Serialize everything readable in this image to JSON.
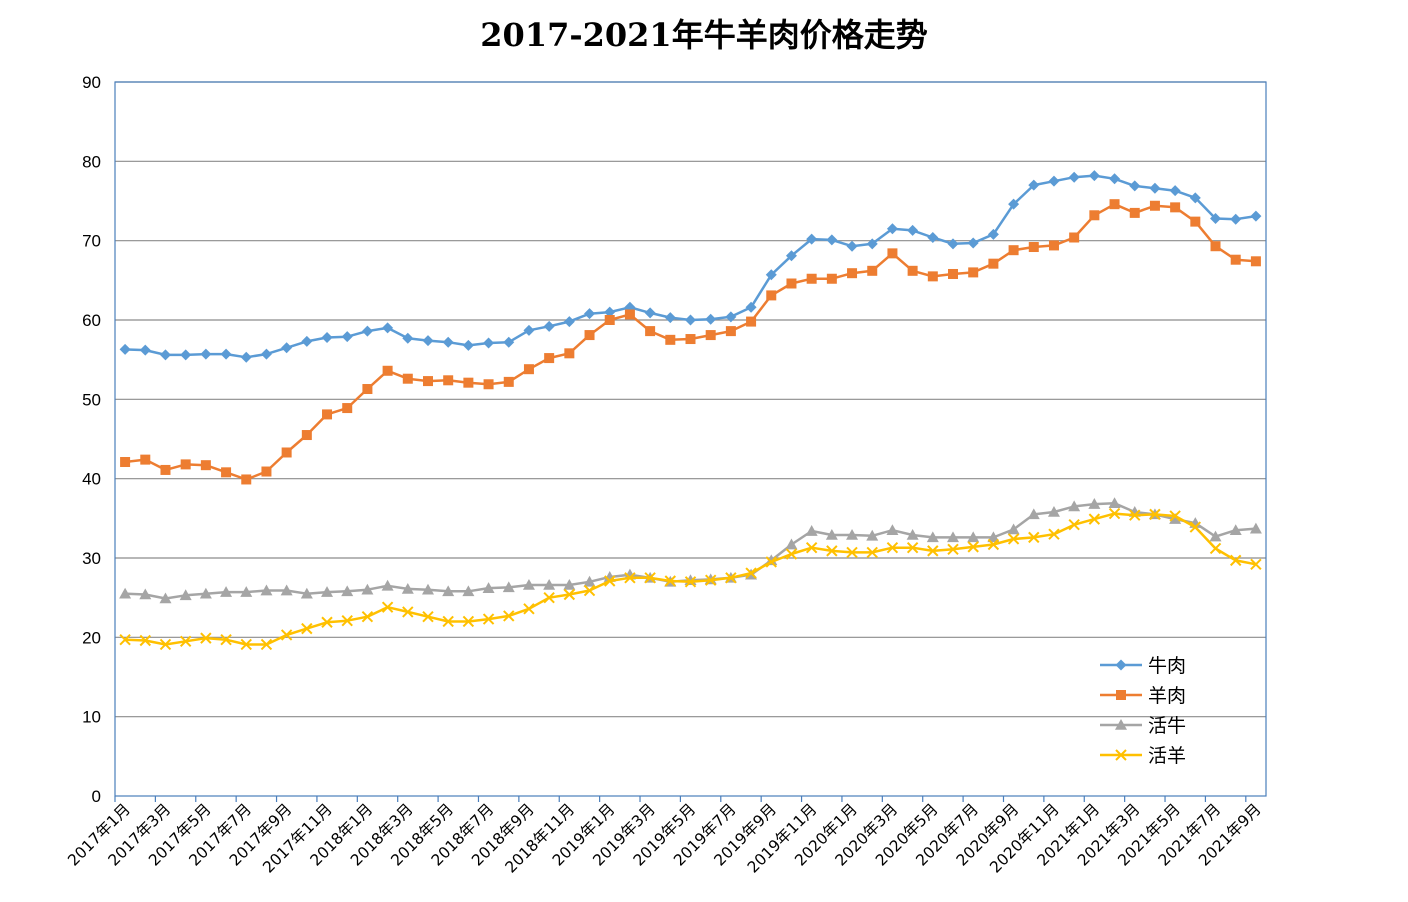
{
  "chart_data": {
    "type": "line",
    "title": "2017-2021年牛羊肉价格走势",
    "xlabel": "",
    "ylabel": "",
    "ylim": [
      0,
      90
    ],
    "yticks": [
      0,
      10,
      20,
      30,
      40,
      50,
      60,
      70,
      80,
      90
    ],
    "grid": "horizontal",
    "legend_position": "bottom-right",
    "categories": [
      "2017年1月",
      "2017年2月",
      "2017年3月",
      "2017年4月",
      "2017年5月",
      "2017年6月",
      "2017年7月",
      "2017年8月",
      "2017年9月",
      "2017年10月",
      "2017年11月",
      "2017年12月",
      "2018年1月",
      "2018年2月",
      "2018年3月",
      "2018年4月",
      "2018年5月",
      "2018年6月",
      "2018年7月",
      "2018年8月",
      "2018年9月",
      "2018年10月",
      "2018年11月",
      "2018年12月",
      "2019年1月",
      "2019年2月",
      "2019年3月",
      "2019年4月",
      "2019年5月",
      "2019年6月",
      "2019年7月",
      "2019年8月",
      "2019年9月",
      "2019年10月",
      "2019年11月",
      "2019年12月",
      "2020年1月",
      "2020年2月",
      "2020年3月",
      "2020年4月",
      "2020年5月",
      "2020年6月",
      "2020年7月",
      "2020年8月",
      "2020年9月",
      "2020年10月",
      "2020年11月",
      "2020年12月",
      "2021年1月",
      "2021年2月",
      "2021年3月",
      "2021年4月",
      "2021年5月",
      "2021年6月",
      "2021年7月",
      "2021年8月",
      "2021年9月"
    ],
    "xtick_labels": [
      "2017年1月",
      "2017年3月",
      "2017年5月",
      "2017年7月",
      "2017年9月",
      "2017年11月",
      "2018年1月",
      "2018年3月",
      "2018年5月",
      "2018年7月",
      "2018年9月",
      "2018年11月",
      "2019年1月",
      "2019年3月",
      "2019年5月",
      "2019年7月",
      "2019年9月",
      "2019年11月",
      "2020年1月",
      "2020年3月",
      "2020年5月",
      "2020年7月",
      "2020年9月",
      "2020年11月",
      "2021年1月",
      "2021年3月",
      "2021年5月",
      "2021年7月",
      "2021年9月"
    ],
    "series": [
      {
        "name": "牛肉",
        "color": "#5B9BD5",
        "marker": "diamond",
        "values": [
          56.3,
          56.2,
          55.6,
          55.6,
          55.7,
          55.7,
          55.3,
          55.7,
          56.5,
          57.3,
          57.8,
          57.9,
          58.6,
          59.0,
          57.7,
          57.4,
          57.2,
          56.8,
          57.1,
          57.2,
          58.7,
          59.2,
          59.8,
          60.8,
          61.0,
          61.6,
          60.9,
          60.3,
          60.0,
          60.1,
          60.4,
          61.6,
          65.7,
          68.1,
          70.2,
          70.1,
          69.3,
          69.6,
          71.5,
          71.3,
          70.4,
          69.6,
          69.7,
          70.8,
          74.6,
          77.0,
          77.5,
          78.0,
          78.2,
          77.8,
          76.9,
          76.6,
          76.3,
          75.4,
          72.8,
          72.7,
          73.1
        ]
      },
      {
        "name": "羊肉",
        "color": "#ED7D31",
        "marker": "square",
        "values": [
          42.1,
          42.4,
          41.1,
          41.8,
          41.7,
          40.8,
          39.9,
          40.9,
          43.3,
          45.5,
          48.1,
          48.9,
          51.3,
          53.6,
          52.6,
          52.3,
          52.4,
          52.1,
          51.9,
          52.2,
          53.8,
          55.2,
          55.8,
          58.1,
          60.0,
          60.7,
          58.6,
          57.5,
          57.6,
          58.1,
          58.6,
          59.8,
          63.1,
          64.6,
          65.2,
          65.2,
          65.9,
          66.2,
          68.4,
          66.2,
          65.5,
          65.8,
          66.0,
          67.1,
          68.8,
          69.2,
          69.4,
          70.4,
          73.2,
          74.6,
          73.5,
          74.4,
          74.2,
          72.4,
          69.3,
          67.6,
          67.4
        ]
      },
      {
        "name": "活牛",
        "color": "#A5A5A5",
        "marker": "triangle",
        "values": [
          25.5,
          25.4,
          24.9,
          25.3,
          25.5,
          25.7,
          25.7,
          25.9,
          25.9,
          25.5,
          25.7,
          25.8,
          26.0,
          26.5,
          26.1,
          26.0,
          25.8,
          25.8,
          26.2,
          26.3,
          26.6,
          26.6,
          26.6,
          27.0,
          27.6,
          27.9,
          27.5,
          27.0,
          27.2,
          27.3,
          27.5,
          27.9,
          29.7,
          31.7,
          33.4,
          32.9,
          32.9,
          32.8,
          33.5,
          32.9,
          32.6,
          32.6,
          32.6,
          32.6,
          33.6,
          35.5,
          35.8,
          36.5,
          36.8,
          36.9,
          35.8,
          35.5,
          34.9,
          34.4,
          32.7,
          33.5,
          33.7
        ]
      },
      {
        "name": "活羊",
        "color": "#FFC000",
        "marker": "x",
        "values": [
          19.7,
          19.6,
          19.1,
          19.5,
          19.9,
          19.7,
          19.1,
          19.1,
          20.3,
          21.1,
          21.9,
          22.1,
          22.6,
          23.8,
          23.2,
          22.6,
          22.0,
          22.0,
          22.3,
          22.7,
          23.6,
          25.0,
          25.4,
          25.9,
          27.1,
          27.5,
          27.5,
          27.1,
          27.0,
          27.2,
          27.5,
          28.1,
          29.5,
          30.5,
          31.3,
          30.9,
          30.7,
          30.7,
          31.3,
          31.3,
          30.9,
          31.1,
          31.4,
          31.7,
          32.4,
          32.6,
          33.0,
          34.2,
          34.9,
          35.6,
          35.4,
          35.5,
          35.3,
          33.9,
          31.2,
          29.7,
          29.2
        ]
      }
    ]
  }
}
